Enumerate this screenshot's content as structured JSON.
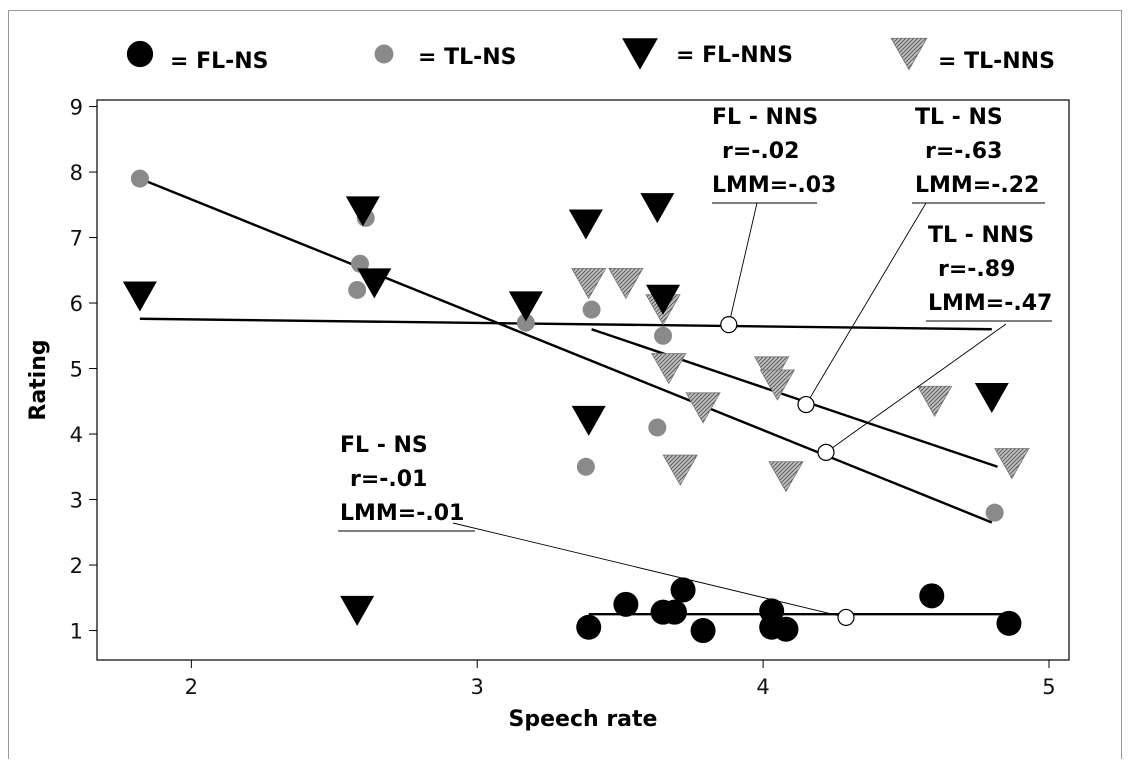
{
  "chart_data": {
    "type": "scatter",
    "title": "",
    "xlabel": "Speech rate",
    "ylabel": "Rating",
    "xlim": [
      1.67,
      5.07
    ],
    "ylim": [
      0.55,
      9.1
    ],
    "xticks": [
      2,
      3,
      4,
      5
    ],
    "yticks": [
      1,
      2,
      3,
      4,
      5,
      6,
      7,
      8,
      9
    ],
    "legend_position": "top",
    "colors": {
      "black": "#000000",
      "gray": "#8a8a8a",
      "hatched": "#9a9a9a"
    },
    "series": [
      {
        "name": "FL-NS",
        "legend_label": "= FL-NS",
        "marker": "circle-black",
        "points": [
          [
            3.39,
            1.05
          ],
          [
            3.52,
            1.4
          ],
          [
            3.65,
            1.28
          ],
          [
            3.69,
            1.28
          ],
          [
            3.72,
            1.62
          ],
          [
            3.79,
            1.0
          ],
          [
            4.03,
            1.3
          ],
          [
            4.03,
            1.05
          ],
          [
            4.08,
            1.02
          ],
          [
            4.59,
            1.53
          ],
          [
            4.86,
            1.11
          ]
        ],
        "fit": {
          "x": [
            3.39,
            4.86
          ],
          "y": [
            1.25,
            1.25
          ],
          "r_label": "r=-.01",
          "lmm_label": "LMM=-.01"
        }
      },
      {
        "name": "TL-NS",
        "legend_label": "= TL-NS",
        "marker": "circle-gray",
        "points": [
          [
            1.82,
            7.9
          ],
          [
            2.58,
            6.2
          ],
          [
            2.59,
            6.6
          ],
          [
            2.61,
            7.3
          ],
          [
            3.17,
            5.7
          ],
          [
            3.38,
            3.5
          ],
          [
            3.4,
            5.9
          ],
          [
            3.63,
            4.1
          ],
          [
            3.65,
            5.5
          ],
          [
            4.81,
            2.8
          ]
        ],
        "fit": {
          "x": [
            1.82,
            4.8
          ],
          "y": [
            7.9,
            2.65
          ],
          "r_label": "r=-.63",
          "lmm_label": "LMM=-.22"
        }
      },
      {
        "name": "FL-NNS",
        "legend_label": "= FL-NNS",
        "marker": "triangle-black",
        "points": [
          [
            1.82,
            6.1
          ],
          [
            2.58,
            1.3
          ],
          [
            2.6,
            7.4
          ],
          [
            2.64,
            6.3
          ],
          [
            3.17,
            5.95
          ],
          [
            3.38,
            7.2
          ],
          [
            3.39,
            4.2
          ],
          [
            3.63,
            7.45
          ],
          [
            3.65,
            6.05
          ],
          [
            4.8,
            4.55
          ]
        ],
        "fit": {
          "x": [
            1.82,
            4.8
          ],
          "y": [
            5.76,
            5.6
          ],
          "r_label": "r=-.02",
          "lmm_label": "LMM=-.03"
        }
      },
      {
        "name": "TL-NNS",
        "legend_label": "= TL-NNS",
        "marker": "triangle-hatched",
        "points": [
          [
            3.39,
            6.3
          ],
          [
            3.52,
            6.3
          ],
          [
            3.65,
            5.9
          ],
          [
            3.67,
            5.0
          ],
          [
            3.71,
            3.45
          ],
          [
            3.79,
            4.4
          ],
          [
            4.03,
            4.95
          ],
          [
            4.05,
            4.75
          ],
          [
            4.08,
            3.35
          ],
          [
            4.6,
            4.5
          ],
          [
            4.87,
            3.55
          ]
        ],
        "fit": {
          "x": [
            3.4,
            4.82
          ],
          "y": [
            5.6,
            3.5
          ],
          "r_label": "r=-.89",
          "lmm_label": "LMM=-.47"
        }
      }
    ],
    "annotations": [
      {
        "series": "FL-NS",
        "title": "FL - NS",
        "r": "r=-.01",
        "lmm": "LMM=-.01",
        "anchor": [
          4.29,
          1.2
        ]
      },
      {
        "series": "FL-NNS",
        "title": "FL - NNS",
        "r": "r=-.02",
        "lmm": "LMM=-.03",
        "anchor": [
          3.88,
          5.67
        ]
      },
      {
        "series": "TL-NS",
        "title": "TL - NS",
        "r": "r=-.63",
        "lmm": "LMM=-.22",
        "anchor": [
          4.15,
          4.45
        ]
      },
      {
        "series": "TL-NNS",
        "title": "TL - NNS",
        "r": "r=-.89",
        "lmm": "LMM=-.47",
        "anchor": [
          4.22,
          3.72
        ]
      }
    ]
  }
}
